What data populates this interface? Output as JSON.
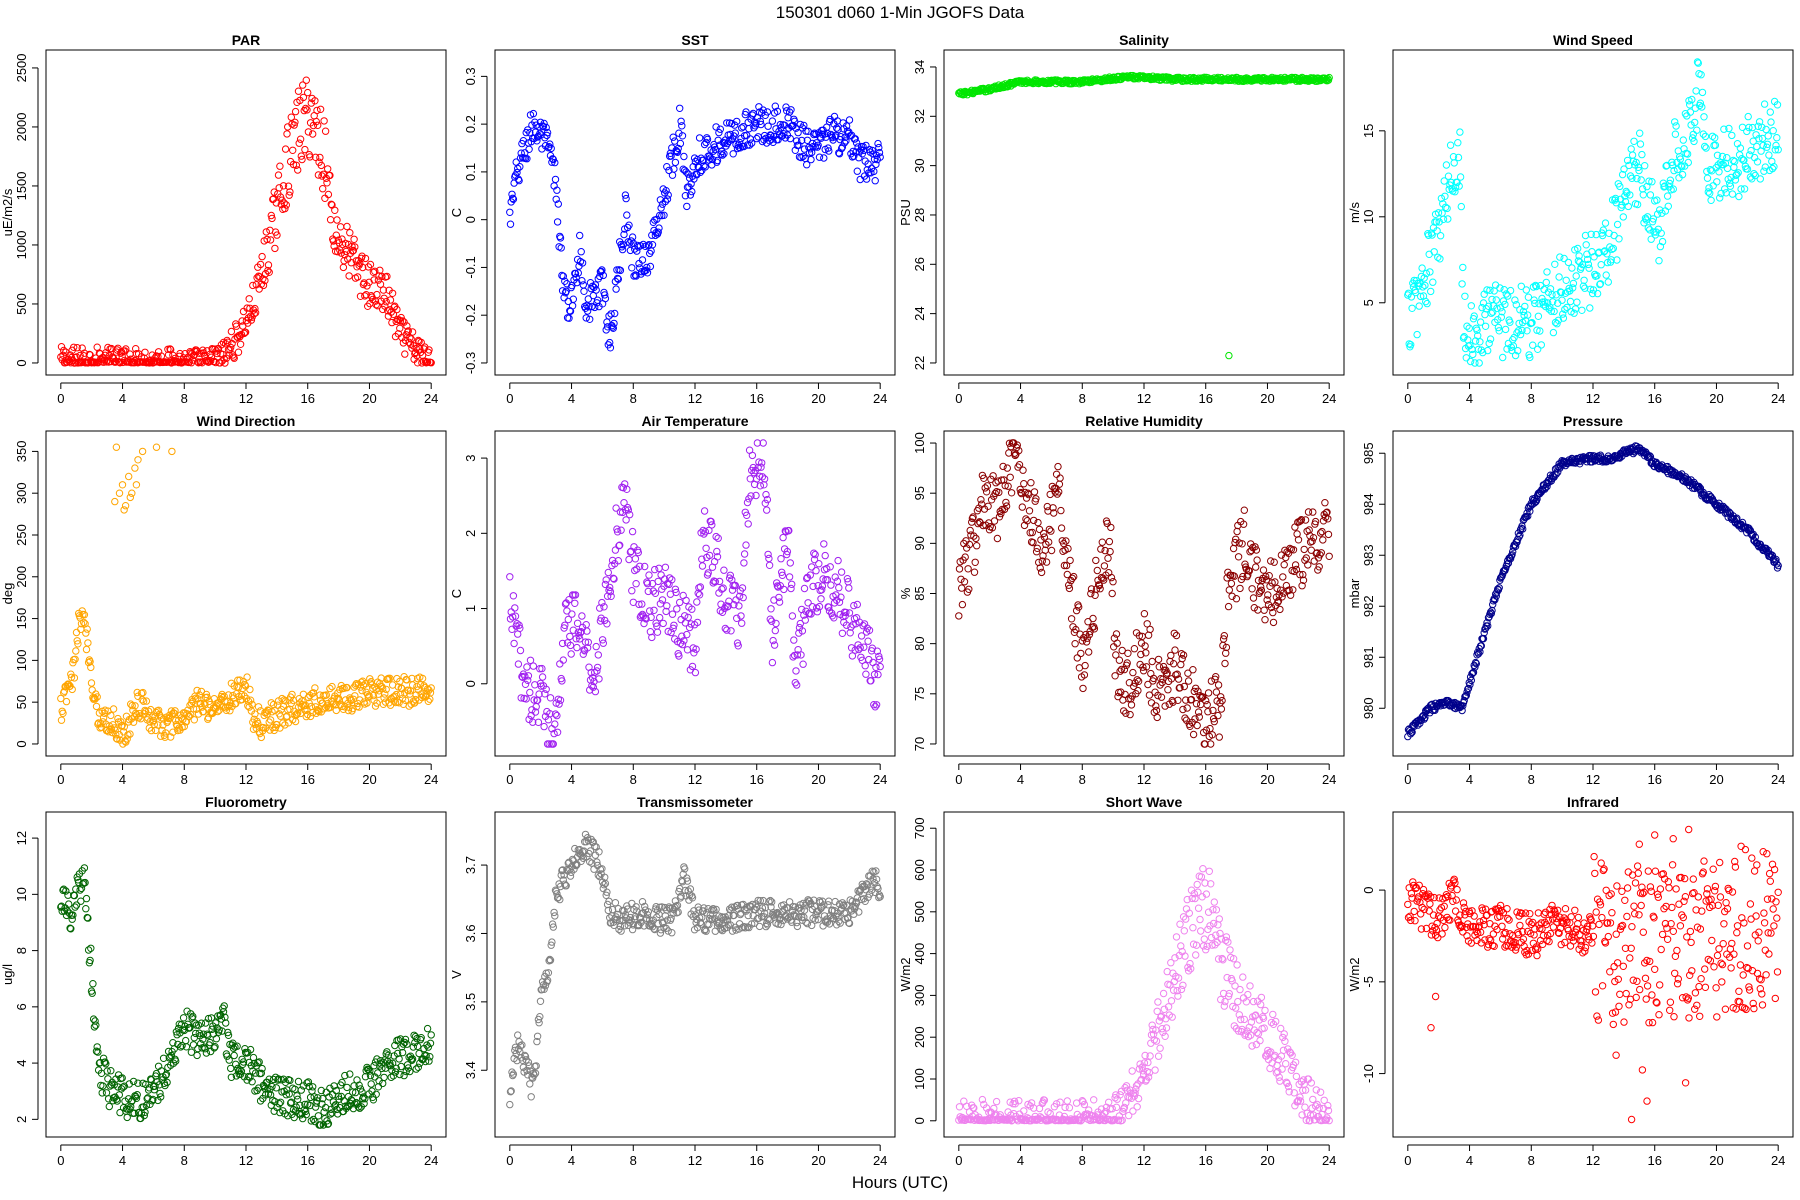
{
  "figure": {
    "title": "150301    d060    1-Min   JGOFS Data",
    "xlabel": "Hours (UTC)"
  },
  "chart_data": [
    {
      "type": "scatter",
      "title": "PAR",
      "ylabel": "uE/m2/s",
      "color": "#ff0000",
      "xlim": [
        0,
        24
      ],
      "ylim": [
        0,
        2550
      ],
      "xticks": [
        0,
        4,
        8,
        12,
        16,
        20,
        24
      ],
      "yticks": [
        0,
        500,
        1000,
        1500,
        2000,
        2500
      ],
      "profile": [
        [
          0,
          20
        ],
        [
          9.5,
          0
        ],
        [
          10.5,
          60
        ],
        [
          11.5,
          220
        ],
        [
          12.5,
          500
        ],
        [
          13.5,
          1000
        ],
        [
          14.5,
          1600
        ],
        [
          15.5,
          2000
        ],
        [
          16.2,
          2100
        ],
        [
          17,
          1800
        ],
        [
          17.8,
          1100
        ],
        [
          19,
          850
        ],
        [
          20,
          650
        ],
        [
          21,
          600
        ],
        [
          22,
          250
        ],
        [
          23,
          100
        ],
        [
          24,
          20
        ]
      ],
      "spread": 0.12,
      "wiggle": 120,
      "zero_floor": true
    },
    {
      "type": "scatter",
      "title": "SST",
      "ylabel": "C",
      "color": "#0000ff",
      "xlim": [
        0,
        24
      ],
      "ylim": [
        -0.3,
        0.33
      ],
      "xticks": [
        0,
        4,
        8,
        12,
        16,
        20,
        24
      ],
      "yticks": [
        -0.3,
        -0.2,
        -0.1,
        0,
        0.1,
        0.2,
        0.3
      ],
      "profile": [
        [
          0,
          0
        ],
        [
          0.5,
          0.1
        ],
        [
          1.5,
          0.2
        ],
        [
          2.5,
          0.15
        ],
        [
          3,
          0.07
        ],
        [
          3.5,
          -0.16
        ],
        [
          4,
          -0.18
        ],
        [
          4.5,
          -0.06
        ],
        [
          5,
          -0.18
        ],
        [
          6,
          -0.14
        ],
        [
          6.5,
          -0.25
        ],
        [
          7,
          -0.12
        ],
        [
          7.5,
          0.02
        ],
        [
          8,
          -0.08
        ],
        [
          9,
          -0.08
        ],
        [
          10,
          0.05
        ],
        [
          11,
          0.2
        ],
        [
          11.5,
          0.05
        ],
        [
          12,
          0.13
        ],
        [
          13,
          0.15
        ],
        [
          15,
          0.18
        ],
        [
          16,
          0.2
        ],
        [
          18,
          0.2
        ],
        [
          19.5,
          0.14
        ],
        [
          21,
          0.18
        ],
        [
          22,
          0.17
        ],
        [
          22.5,
          0.12
        ],
        [
          23.5,
          0.12
        ]
      ],
      "spread": 0,
      "wiggle": 0.04
    },
    {
      "type": "scatter",
      "title": "Salinity",
      "ylabel": "PSU",
      "color": "#00e600",
      "xlim": [
        0,
        24
      ],
      "ylim": [
        22,
        34.2
      ],
      "xticks": [
        0,
        4,
        8,
        12,
        16,
        20,
        24
      ],
      "yticks": [
        22,
        24,
        26,
        28,
        30,
        32,
        34
      ],
      "profile": [
        [
          0,
          32.9
        ],
        [
          2,
          33.1
        ],
        [
          4,
          33.4
        ],
        [
          8,
          33.4
        ],
        [
          11,
          33.6
        ],
        [
          14,
          33.5
        ],
        [
          24,
          33.5
        ]
      ],
      "spread": 0,
      "wiggle": 0.08,
      "outliers": [
        [
          17.5,
          22.3
        ]
      ]
    },
    {
      "type": "scatter",
      "title": "Wind Speed",
      "ylabel": "m/s",
      "color": "#00ffff",
      "xlim": [
        0,
        24
      ],
      "ylim": [
        1.5,
        19
      ],
      "xticks": [
        0,
        4,
        8,
        12,
        16,
        20,
        24
      ],
      "yticks": [
        5,
        10,
        15
      ],
      "profile": [
        [
          0,
          4
        ],
        [
          1,
          6
        ],
        [
          2,
          9
        ],
        [
          3,
          13
        ],
        [
          3.4,
          14
        ],
        [
          3.6,
          4
        ],
        [
          4.5,
          2.5
        ],
        [
          5.5,
          5
        ],
        [
          6,
          4
        ],
        [
          8,
          4
        ],
        [
          10,
          6
        ],
        [
          12,
          7
        ],
        [
          13,
          8
        ],
        [
          14,
          11
        ],
        [
          15,
          13
        ],
        [
          15.5,
          10
        ],
        [
          16.5,
          9.5
        ],
        [
          17,
          13
        ],
        [
          18.5,
          16
        ],
        [
          19,
          18
        ],
        [
          19.3,
          13
        ],
        [
          21,
          13
        ],
        [
          23,
          14.5
        ],
        [
          24,
          15
        ]
      ],
      "spread": 0,
      "wiggle": 2.2
    },
    {
      "type": "scatter",
      "title": "Wind Direction",
      "ylabel": "deg",
      "color": "#ffa500",
      "xlim": [
        0,
        24
      ],
      "ylim": [
        0,
        360
      ],
      "xticks": [
        0,
        4,
        8,
        12,
        16,
        20,
        24
      ],
      "yticks": [
        0,
        50,
        100,
        150,
        200,
        250,
        300,
        350
      ],
      "profile": [
        [
          0,
          40
        ],
        [
          0.8,
          80
        ],
        [
          1.2,
          150
        ],
        [
          1.6,
          140
        ],
        [
          2,
          80
        ],
        [
          2.5,
          30
        ],
        [
          3.5,
          25
        ],
        [
          4,
          10
        ],
        [
          5,
          50
        ],
        [
          6,
          30
        ],
        [
          7,
          20
        ],
        [
          8,
          30
        ],
        [
          9,
          50
        ],
        [
          10,
          45
        ],
        [
          11,
          55
        ],
        [
          12,
          70
        ],
        [
          12.5,
          30
        ],
        [
          13,
          25
        ],
        [
          14,
          35
        ],
        [
          16,
          50
        ],
        [
          20,
          60
        ],
        [
          24,
          65
        ]
      ],
      "spread": 0,
      "wiggle": 18,
      "outliers": [
        [
          3.5,
          290
        ],
        [
          3.8,
          300
        ],
        [
          4,
          310
        ],
        [
          4.2,
          285
        ],
        [
          4.4,
          320
        ],
        [
          4.6,
          300
        ],
        [
          4.8,
          330
        ],
        [
          5,
          340
        ],
        [
          3.6,
          355
        ],
        [
          5.3,
          350
        ],
        [
          6.2,
          355
        ],
        [
          7.2,
          350
        ],
        [
          4.1,
          280
        ],
        [
          4.5,
          295
        ],
        [
          4.9,
          310
        ]
      ]
    },
    {
      "type": "scatter",
      "title": "Air Temperature",
      "ylabel": "C",
      "color": "#a020f0",
      "xlim": [
        0,
        24
      ],
      "ylim": [
        -0.8,
        3.2
      ],
      "xticks": [
        0,
        4,
        8,
        12,
        16,
        20,
        24
      ],
      "yticks": [
        0,
        1,
        2,
        3
      ],
      "profile": [
        [
          0,
          1
        ],
        [
          1,
          0
        ],
        [
          2,
          -0.2
        ],
        [
          3,
          -0.6
        ],
        [
          3.5,
          0.7
        ],
        [
          4.5,
          0.8
        ],
        [
          5.5,
          0.1
        ],
        [
          6.5,
          1.5
        ],
        [
          7.5,
          2.5
        ],
        [
          8,
          1.5
        ],
        [
          9,
          1
        ],
        [
          10,
          1.2
        ],
        [
          11,
          0.8
        ],
        [
          12,
          0.5
        ],
        [
          12.5,
          2
        ],
        [
          13.5,
          1.5
        ],
        [
          14,
          1.1
        ],
        [
          15,
          0.9
        ],
        [
          15.5,
          2.7
        ],
        [
          16.5,
          2.9
        ],
        [
          17,
          0.7
        ],
        [
          18,
          2
        ],
        [
          18.5,
          0.1
        ],
        [
          19.5,
          1.3
        ],
        [
          20.5,
          1.5
        ],
        [
          22,
          0.9
        ],
        [
          23.5,
          0.2
        ],
        [
          24,
          -0.1
        ]
      ],
      "spread": 0,
      "wiggle": 0.45
    },
    {
      "type": "scatter",
      "title": "Relative Humidity",
      "ylabel": "%",
      "color": "#8b0000",
      "xlim": [
        0,
        24
      ],
      "ylim": [
        70,
        100
      ],
      "xticks": [
        0,
        4,
        8,
        12,
        16,
        20,
        24
      ],
      "yticks": [
        70,
        75,
        80,
        85,
        90,
        95,
        100
      ],
      "profile": [
        [
          0,
          86
        ],
        [
          1,
          90
        ],
        [
          1.5,
          94
        ],
        [
          2.5,
          93
        ],
        [
          3.5,
          98
        ],
        [
          4.5,
          94
        ],
        [
          5.5,
          90
        ],
        [
          6.5,
          95
        ],
        [
          7,
          89
        ],
        [
          8,
          78
        ],
        [
          9,
          86
        ],
        [
          9.8,
          90
        ],
        [
          10.2,
          78
        ],
        [
          11,
          76
        ],
        [
          12,
          80
        ],
        [
          13,
          75
        ],
        [
          14,
          78
        ],
        [
          15,
          75
        ],
        [
          15.5,
          72
        ],
        [
          17,
          74
        ],
        [
          17.5,
          86
        ],
        [
          18.5,
          90
        ],
        [
          19.5,
          85
        ],
        [
          21,
          86
        ],
        [
          22,
          89
        ],
        [
          24,
          91
        ]
      ],
      "spread": 0,
      "wiggle": 3.5
    },
    {
      "type": "scatter",
      "title": "Pressure",
      "ylabel": "mbar",
      "color": "#00008b",
      "xlim": [
        0,
        24
      ],
      "ylim": [
        979.3,
        985.2
      ],
      "xticks": [
        0,
        4,
        8,
        12,
        16,
        20,
        24
      ],
      "yticks": [
        980,
        981,
        982,
        983,
        984,
        985
      ],
      "profile": [
        [
          0,
          979.5
        ],
        [
          1.5,
          980
        ],
        [
          2.5,
          980.1
        ],
        [
          3.5,
          980
        ],
        [
          4.5,
          981
        ],
        [
          6,
          982.5
        ],
        [
          8,
          984
        ],
        [
          10,
          984.8
        ],
        [
          12,
          984.9
        ],
        [
          13,
          984.9
        ],
        [
          15,
          985.1
        ],
        [
          16,
          984.8
        ],
        [
          18,
          984.5
        ],
        [
          20,
          984
        ],
        [
          22,
          983.5
        ],
        [
          24,
          982.8
        ]
      ],
      "spread": 0,
      "wiggle": 0.07
    },
    {
      "type": "scatter",
      "title": "Fluorometry",
      "ylabel": "ug/l",
      "color": "#006400",
      "xlim": [
        0,
        24
      ],
      "ylim": [
        1.8,
        12.5
      ],
      "xticks": [
        0,
        4,
        8,
        12,
        16,
        20,
        24
      ],
      "yticks": [
        2,
        4,
        6,
        8,
        10,
        12
      ],
      "profile": [
        [
          0,
          10
        ],
        [
          0.7,
          9
        ],
        [
          1,
          10
        ],
        [
          1.5,
          10.5
        ],
        [
          2,
          7
        ],
        [
          2.4,
          4
        ],
        [
          3,
          3.2
        ],
        [
          4,
          2.8
        ],
        [
          5,
          2.6
        ],
        [
          6,
          3
        ],
        [
          7,
          4
        ],
        [
          8,
          5.3
        ],
        [
          9,
          4.8
        ],
        [
          10,
          5.2
        ],
        [
          10.5,
          5.6
        ],
        [
          11,
          4.2
        ],
        [
          12,
          4
        ],
        [
          13,
          3.3
        ],
        [
          14,
          2.8
        ],
        [
          16,
          2.7
        ],
        [
          17,
          2.3
        ],
        [
          18,
          2.8
        ],
        [
          20,
          3.2
        ],
        [
          21,
          3.8
        ],
        [
          22,
          4.2
        ],
        [
          23,
          4.3
        ],
        [
          24,
          4.6
        ]
      ],
      "spread": 0,
      "wiggle": 0.7
    },
    {
      "type": "scatter",
      "title": "Transmissometer",
      "ylabel": "V",
      "color": "#808080",
      "xlim": [
        0,
        24
      ],
      "ylim": [
        3.32,
        3.76
      ],
      "xticks": [
        0,
        4,
        8,
        12,
        16,
        20,
        24
      ],
      "yticks": [
        3.4,
        3.5,
        3.6,
        3.7
      ],
      "profile": [
        [
          0,
          3.36
        ],
        [
          0.5,
          3.44
        ],
        [
          1,
          3.41
        ],
        [
          1.5,
          3.37
        ],
        [
          2,
          3.5
        ],
        [
          2.5,
          3.55
        ],
        [
          3,
          3.66
        ],
        [
          4,
          3.7
        ],
        [
          5,
          3.73
        ],
        [
          5.8,
          3.7
        ],
        [
          6.5,
          3.63
        ],
        [
          7.5,
          3.62
        ],
        [
          8.5,
          3.63
        ],
        [
          9.5,
          3.62
        ],
        [
          10.5,
          3.62
        ],
        [
          11.3,
          3.68
        ],
        [
          12,
          3.62
        ],
        [
          14,
          3.62
        ],
        [
          16,
          3.63
        ],
        [
          18,
          3.63
        ],
        [
          20,
          3.63
        ],
        [
          22,
          3.63
        ],
        [
          23.5,
          3.68
        ],
        [
          24,
          3.67
        ]
      ],
      "spread": 0,
      "wiggle": 0.02
    },
    {
      "type": "scatter",
      "title": "Short Wave",
      "ylabel": "W/m2",
      "color": "#ee82ee",
      "xlim": [
        0,
        24
      ],
      "ylim": [
        -10,
        710
      ],
      "xticks": [
        0,
        4,
        8,
        12,
        16,
        20,
        24
      ],
      "yticks": [
        0,
        100,
        200,
        300,
        400,
        500,
        600,
        700
      ],
      "profile": [
        [
          0,
          2
        ],
        [
          9.5,
          0
        ],
        [
          10.5,
          20
        ],
        [
          11.5,
          80
        ],
        [
          12.5,
          170
        ],
        [
          13.5,
          280
        ],
        [
          14.5,
          400
        ],
        [
          15.5,
          500
        ],
        [
          16.2,
          520
        ],
        [
          17,
          380
        ],
        [
          18,
          300
        ],
        [
          19,
          250
        ],
        [
          20,
          200
        ],
        [
          21,
          150
        ],
        [
          22,
          80
        ],
        [
          23,
          30
        ],
        [
          24,
          5
        ]
      ],
      "spread": 0.12,
      "wiggle": 50,
      "zero_floor": true
    },
    {
      "type": "scatter",
      "title": "Infrared",
      "ylabel": "W/m2",
      "color": "#ff0000",
      "xlim": [
        0,
        24
      ],
      "ylim": [
        -12.8,
        3.6
      ],
      "xticks": [
        0,
        4,
        8,
        12,
        16,
        20,
        24
      ],
      "yticks": [
        -10,
        -5,
        0
      ],
      "profile": [
        [
          0,
          -0.5
        ],
        [
          1,
          -1
        ],
        [
          2,
          -1.5
        ],
        [
          3,
          -0.3
        ],
        [
          4,
          -2
        ],
        [
          6,
          -2
        ],
        [
          8,
          -2.5
        ],
        [
          10,
          -1.8
        ],
        [
          12,
          -2.5
        ],
        [
          14,
          -3
        ],
        [
          16,
          -3
        ],
        [
          18,
          -3
        ],
        [
          20,
          -2.5
        ],
        [
          22,
          -2
        ],
        [
          24,
          -2
        ]
      ],
      "spread": 0,
      "wiggle": 1.2,
      "noisy_from": 12,
      "noisy_amp": 4.5,
      "outliers": [
        [
          1.5,
          -7.5
        ],
        [
          1.8,
          -5.8
        ],
        [
          14.5,
          -12.5
        ],
        [
          15.5,
          -11.5
        ],
        [
          15,
          2.5
        ],
        [
          16,
          3
        ],
        [
          17.2,
          2.8
        ],
        [
          18.2,
          3.3
        ],
        [
          18,
          -10.5
        ],
        [
          13.5,
          -9
        ],
        [
          15.2,
          -9.8
        ]
      ]
    }
  ]
}
